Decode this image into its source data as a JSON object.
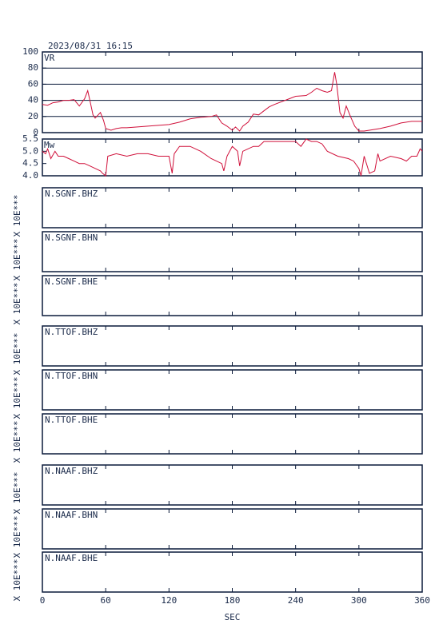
{
  "chart_data": [
    {
      "type": "line",
      "title": "2023/08/31  16:15",
      "ylabel": "VR",
      "color": "#d0103a",
      "ylim": [
        0,
        100
      ],
      "yticks": [
        0,
        20,
        40,
        60,
        80,
        100
      ],
      "grid": true,
      "x": [
        0,
        5,
        10,
        15,
        20,
        25,
        30,
        35,
        40,
        43,
        45,
        48,
        50,
        55,
        58,
        60,
        65,
        70,
        75,
        80,
        90,
        100,
        110,
        120,
        130,
        140,
        150,
        160,
        165,
        170,
        175,
        180,
        183,
        187,
        190,
        195,
        200,
        205,
        210,
        215,
        220,
        230,
        240,
        250,
        255,
        260,
        265,
        270,
        274,
        277,
        279,
        282,
        285,
        288,
        292,
        296,
        300,
        305,
        310,
        320,
        330,
        340,
        350,
        360
      ],
      "values": [
        35,
        34,
        37,
        38,
        40,
        40,
        41,
        33,
        42,
        52,
        40,
        22,
        18,
        25,
        15,
        5,
        3,
        5,
        6,
        6,
        7,
        8,
        9,
        10,
        13,
        17,
        19,
        20,
        22,
        12,
        8,
        3,
        7,
        2,
        8,
        13,
        23,
        22,
        27,
        32,
        35,
        40,
        45,
        46,
        50,
        55,
        52,
        50,
        52,
        75,
        60,
        25,
        18,
        33,
        20,
        8,
        2,
        2,
        3,
        5,
        8,
        12,
        14,
        14
      ]
    },
    {
      "type": "line",
      "ylabel": "Mw",
      "color": "#d0103a",
      "ylim": [
        4.0,
        5.5
      ],
      "yticks": [
        {
          "value": 4,
          "label": "4.0"
        },
        4.5,
        {
          "value": 5,
          "label": "5.0"
        },
        5.5
      ],
      "grid": false,
      "x": [
        0,
        3,
        5,
        8,
        12,
        15,
        20,
        25,
        30,
        35,
        40,
        45,
        50,
        55,
        57,
        60,
        62,
        70,
        80,
        90,
        100,
        110,
        120,
        123,
        125,
        130,
        140,
        150,
        160,
        170,
        172,
        175,
        180,
        185,
        187,
        190,
        200,
        205,
        210,
        220,
        230,
        240,
        245,
        250,
        255,
        260,
        265,
        270,
        280,
        290,
        295,
        300,
        302,
        305,
        310,
        315,
        318,
        320,
        330,
        340,
        345,
        350,
        355,
        358,
        360
      ],
      "values": [
        5.0,
        4.9,
        5.1,
        4.7,
        5.0,
        4.8,
        4.8,
        4.7,
        4.6,
        4.5,
        4.5,
        4.4,
        4.3,
        4.2,
        4.1,
        4.0,
        4.8,
        4.9,
        4.8,
        4.9,
        4.9,
        4.8,
        4.8,
        4.1,
        4.9,
        5.2,
        5.2,
        5.0,
        4.7,
        4.5,
        4.2,
        4.8,
        5.2,
        5.0,
        4.4,
        5.0,
        5.2,
        5.2,
        5.4,
        5.4,
        5.4,
        5.4,
        5.2,
        5.5,
        5.4,
        5.4,
        5.3,
        5.0,
        4.8,
        4.7,
        4.6,
        4.3,
        4.0,
        4.8,
        4.1,
        4.2,
        4.9,
        4.6,
        4.8,
        4.7,
        4.6,
        4.8,
        4.8,
        5.1,
        5.0
      ]
    },
    {
      "type": "waveform",
      "title": "N.SGNF.BHZ",
      "ylabel": "X 10E***"
    },
    {
      "type": "waveform",
      "title": "N.SGNF.BHN",
      "ylabel": "X 10E***"
    },
    {
      "type": "waveform",
      "title": "N.SGNF.BHE",
      "ylabel": "X 10E***"
    },
    {
      "type": "waveform",
      "title": "N.TTOF.BHZ",
      "ylabel": "X 10E***"
    },
    {
      "type": "waveform",
      "title": "N.TTOF.BHN",
      "ylabel": "X 10E***"
    },
    {
      "type": "waveform",
      "title": "N.TTOF.BHE",
      "ylabel": "X 10E***"
    },
    {
      "type": "waveform",
      "title": "N.NAAF.BHZ",
      "ylabel": "X 10E***"
    },
    {
      "type": "waveform",
      "title": "N.NAAF.BHN",
      "ylabel": "X 10E***"
    },
    {
      "type": "waveform",
      "title": "N.NAAF.BHE",
      "ylabel": "X 10E***",
      "xlabel": "SEC",
      "xlim": [
        0,
        360
      ],
      "xticks": [
        0,
        60,
        120,
        180,
        240,
        300,
        360
      ]
    }
  ]
}
